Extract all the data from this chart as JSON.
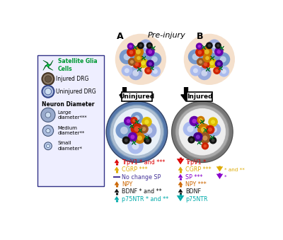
{
  "panel_a_label": "A",
  "panel_b_label": "B",
  "preinjury_label": "Pre-injury",
  "uninjured_label": "Uninjured",
  "injured_label": "Injured",
  "legend_title_glia": "Satellite Glia\nCells",
  "legend_injured": "Injured DRG",
  "legend_uninjured": "Uninjured DRG",
  "legend_diameter_title": "Neuron Diameter",
  "legend_large": "Large\ndiameter***",
  "legend_medium": "Medium\ndiameter**",
  "legend_small": "Small\ndiameter*",
  "uninjured_arrows": [
    {
      "direction": "up",
      "color": "#dd0000",
      "text": "TrpV1 * and ***"
    },
    {
      "direction": "up",
      "color": "#ddaa00",
      "text": "CGRP ***"
    },
    {
      "direction": "none",
      "color": "#443399",
      "text": "No change SP"
    },
    {
      "direction": "up",
      "color": "#cc6600",
      "text": "NPY"
    },
    {
      "direction": "up",
      "color": "#111111",
      "text": "BDNF * and **"
    },
    {
      "direction": "up",
      "color": "#00aaaa",
      "text": "p75NTR * and **"
    }
  ],
  "injured_arrows": [
    {
      "direction": "down",
      "color": "#dd0000",
      "text": "TrpV1 *",
      "extra": null
    },
    {
      "direction": "up",
      "color": "#ddaa00",
      "text": "CGRP ***",
      "extra": {
        "direction": "down",
        "color": "#ddaa00",
        "text": "* and **"
      }
    },
    {
      "direction": "up",
      "color": "#8800cc",
      "text": "SP ***",
      "extra": {
        "direction": "down",
        "color": "#8800cc",
        "text": "*"
      }
    },
    {
      "direction": "up",
      "color": "#cc6600",
      "text": "NPY ***",
      "extra": null
    },
    {
      "direction": "up",
      "color": "#111111",
      "text": "BDNF",
      "extra": null
    },
    {
      "direction": "down",
      "color": "#00aaaa",
      "text": "p75NTR",
      "extra": null
    }
  ],
  "bg_color": "#ffffff",
  "legend_bg": "#eeeeff",
  "legend_border": "#333388",
  "pre_bg": "#f5e0cc",
  "uninjured_dish_outer": "#6688aa",
  "uninjured_dish_inner": "#ccddee",
  "injured_dish_outer": "#888888",
  "injured_dish_inner": "#cccccc"
}
